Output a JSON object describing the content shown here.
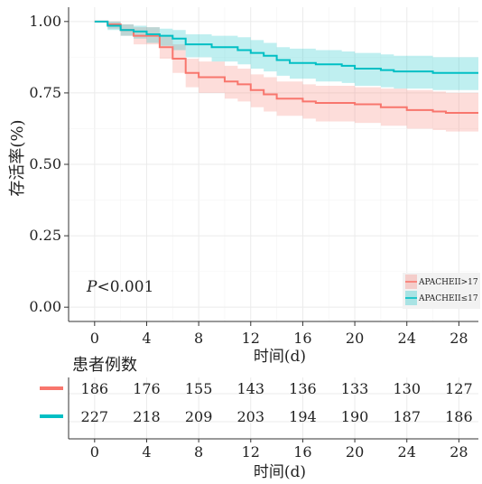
{
  "chart_data": {
    "type": "line",
    "subtype": "kaplan-meier survival curve with 95% confidence bands",
    "ylabel": "存活率(%)",
    "xlabel": "时间(d)",
    "xlim": [
      -2,
      29.5
    ],
    "ylim": [
      -0.05,
      1.05
    ],
    "x_ticks": [
      0,
      4,
      8,
      12,
      16,
      20,
      24,
      28
    ],
    "y_ticks": [
      1.0,
      0.75,
      0.5,
      0.25,
      0.0
    ],
    "y_tick_labels": [
      "1.00",
      "0.75",
      "0.50",
      "0.25",
      "0.00"
    ],
    "grid": true,
    "annotation": {
      "prefix": "P",
      "text": "<0.001"
    },
    "legend": {
      "placement": "bottom-right",
      "entries": [
        "APACHEII>17",
        "APACHEII≤17"
      ]
    },
    "series": [
      {
        "name": "APACHEII>17",
        "color": "#F8766D",
        "band_color": "#F8766D",
        "x": [
          0,
          1,
          2,
          3,
          5,
          6,
          7,
          8,
          10,
          11,
          12,
          13,
          14,
          16,
          17,
          20,
          22,
          24,
          26,
          27,
          29.5
        ],
        "y": [
          1.0,
          0.99,
          0.97,
          0.95,
          0.91,
          0.87,
          0.82,
          0.805,
          0.79,
          0.78,
          0.76,
          0.745,
          0.73,
          0.72,
          0.715,
          0.71,
          0.7,
          0.69,
          0.685,
          0.68,
          0.68
        ],
        "lower": [
          1.0,
          0.975,
          0.95,
          0.92,
          0.87,
          0.82,
          0.77,
          0.75,
          0.73,
          0.72,
          0.7,
          0.685,
          0.67,
          0.66,
          0.65,
          0.645,
          0.635,
          0.625,
          0.62,
          0.615,
          0.61
        ],
        "upper": [
          1.0,
          1.0,
          0.99,
          0.98,
          0.95,
          0.92,
          0.87,
          0.86,
          0.845,
          0.835,
          0.815,
          0.805,
          0.79,
          0.78,
          0.775,
          0.77,
          0.765,
          0.76,
          0.755,
          0.75,
          0.75
        ]
      },
      {
        "name": "APACHEII≤17",
        "color": "#00BFC4",
        "band_color": "#00BFC4",
        "x": [
          0,
          1,
          2,
          3,
          4,
          5,
          6,
          7,
          9,
          11,
          12,
          13,
          14,
          15,
          17,
          19,
          20,
          22,
          23,
          26,
          29.5
        ],
        "y": [
          1.0,
          0.985,
          0.97,
          0.965,
          0.955,
          0.95,
          0.94,
          0.92,
          0.91,
          0.9,
          0.89,
          0.88,
          0.865,
          0.855,
          0.85,
          0.845,
          0.835,
          0.83,
          0.825,
          0.82,
          0.82
        ],
        "lower": [
          1.0,
          0.97,
          0.95,
          0.94,
          0.925,
          0.915,
          0.9,
          0.875,
          0.86,
          0.85,
          0.835,
          0.825,
          0.81,
          0.8,
          0.79,
          0.785,
          0.775,
          0.77,
          0.765,
          0.76,
          0.76
        ],
        "upper": [
          1.0,
          1.0,
          0.99,
          0.985,
          0.98,
          0.975,
          0.97,
          0.955,
          0.95,
          0.945,
          0.935,
          0.925,
          0.91,
          0.905,
          0.9,
          0.895,
          0.89,
          0.885,
          0.88,
          0.875,
          0.875
        ]
      }
    ],
    "risk_table": {
      "title": "患者例数",
      "x_ticks": [
        0,
        4,
        8,
        12,
        16,
        20,
        24,
        28
      ],
      "xlabel": "时间(d)",
      "rows": [
        {
          "color": "#F8766D",
          "values": [
            "186",
            "176",
            "155",
            "143",
            "136",
            "133",
            "130",
            "127"
          ]
        },
        {
          "color": "#00BFC4",
          "values": [
            "227",
            "218",
            "209",
            "203",
            "194",
            "190",
            "187",
            "186"
          ]
        }
      ]
    }
  }
}
